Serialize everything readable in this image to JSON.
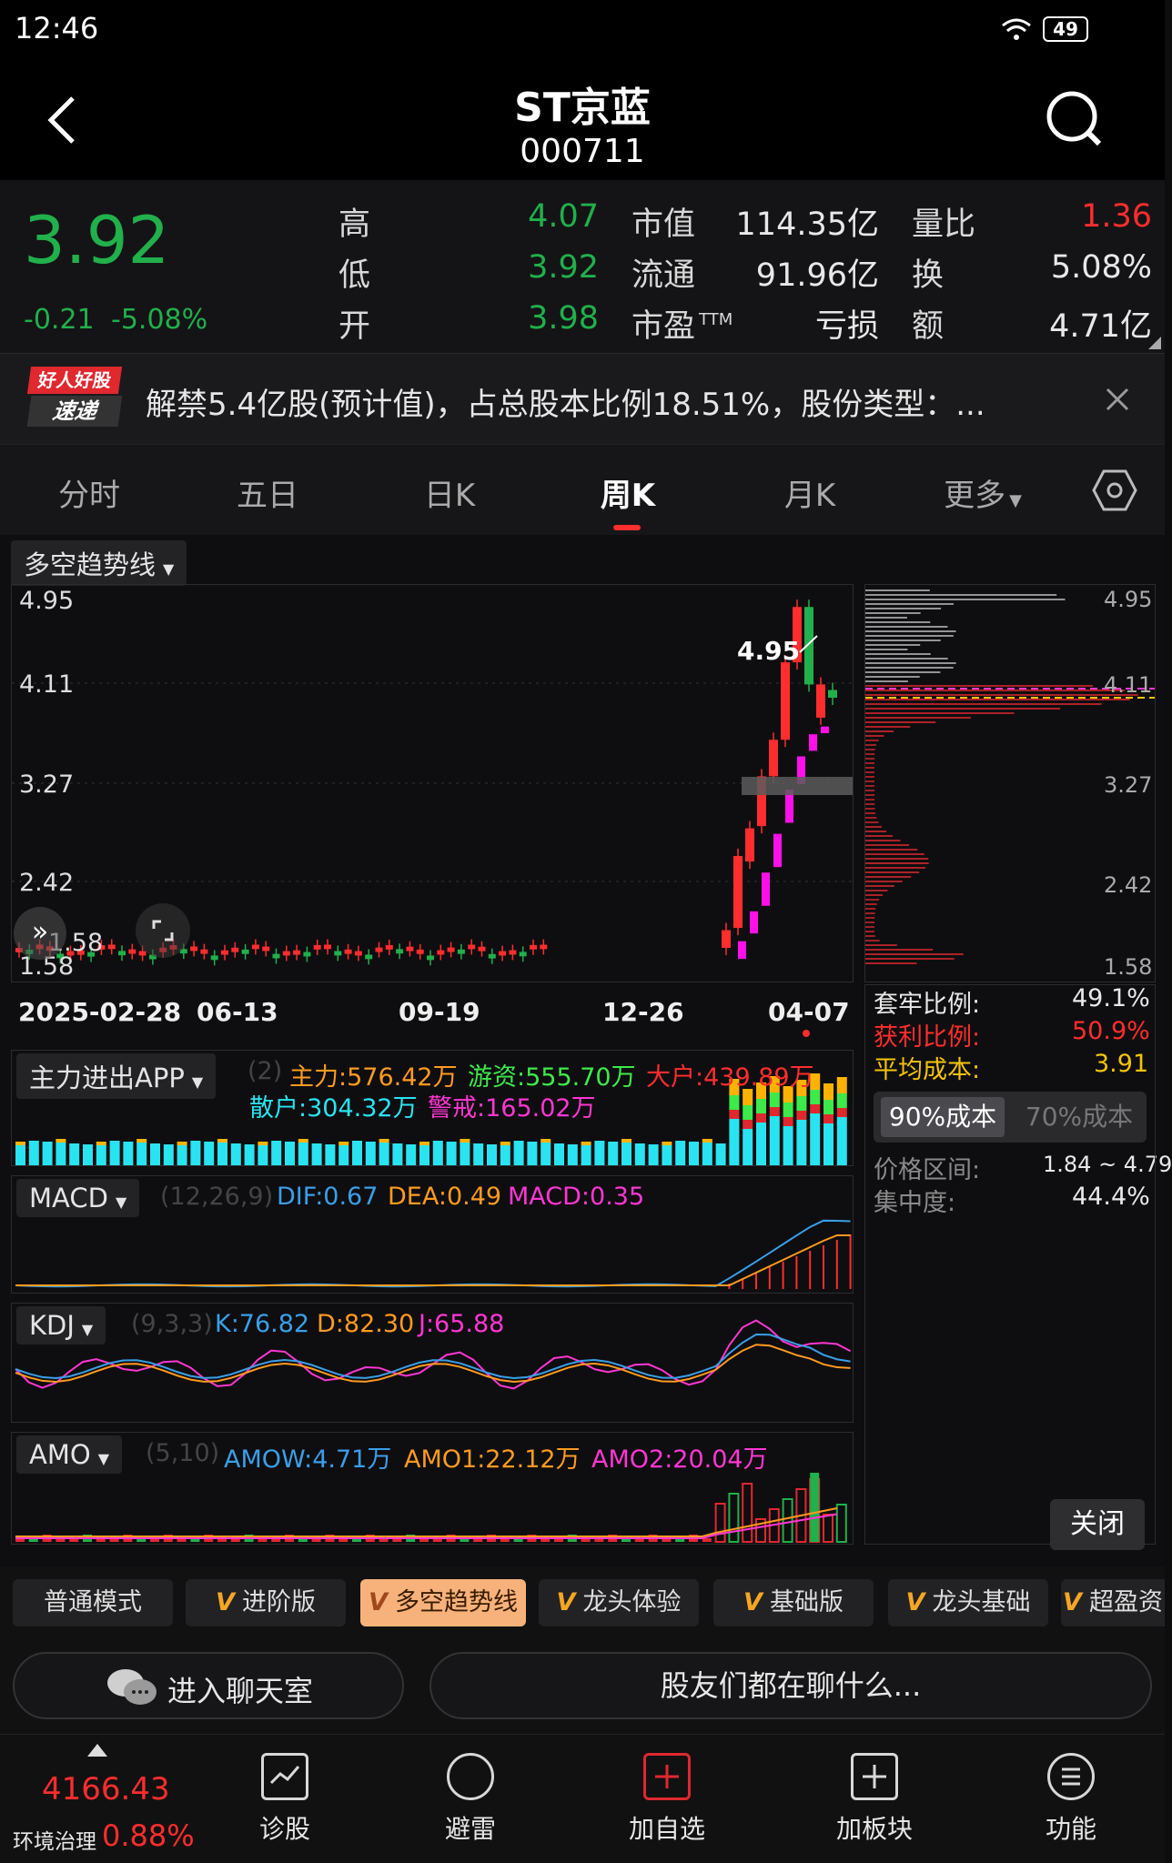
{
  "status": {
    "time": "12:46",
    "battery": "49"
  },
  "header": {
    "title": "ST京蓝",
    "code": "000711"
  },
  "quote": {
    "price": "3.92",
    "change": "-0.21",
    "change_pct": "-5.08%",
    "high_label": "高",
    "high": "4.07",
    "low_label": "低",
    "low": "3.92",
    "open_label": "开",
    "open": "3.98",
    "mktcap_label": "市值",
    "mktcap": "114.35亿",
    "float_label": "流通",
    "float": "91.96亿",
    "pe_label": "市盈",
    "pe_sup": "TTM",
    "pe": "亏损",
    "vr_label": "量比",
    "vr": "1.36",
    "turn_label": "换",
    "turn": "5.08%",
    "amt_label": "额",
    "amt": "4.71亿"
  },
  "notice": {
    "badge_top": "好人好股",
    "badge_bottom": "速递",
    "text": "解禁5.4亿股(预计值)，占总股本比例18.51%，股份类型：..."
  },
  "tabs": [
    {
      "label": "分时"
    },
    {
      "label": "五日"
    },
    {
      "label": "日K"
    },
    {
      "label": "周K"
    },
    {
      "label": "月K"
    },
    {
      "label": "更多"
    }
  ],
  "main_chart": {
    "indicator": "多空趋势线",
    "y_ticks": [
      "4.95",
      "4.11",
      "3.27",
      "2.42",
      "1.58"
    ],
    "low_label_overlay": "1.58",
    "peak_label": "4.95",
    "x_ticks": [
      "2025-02-28",
      "06-13",
      "09-19",
      "12-26",
      "04-07"
    ]
  },
  "chip": {
    "y_ticks": [
      "4.95",
      "4.11",
      "3.27",
      "2.42",
      "1.58"
    ],
    "trapped_label": "套牢比例:",
    "trapped": "49.1%",
    "profit_label": "获利比例:",
    "profit": "50.9%",
    "avg_label": "平均成本:",
    "avg": "3.91",
    "cost90": "90%成本",
    "cost70": "70%成本",
    "range_label": "价格区间:",
    "range": "1.84 ~ 4.79",
    "conc_label": "集中度:",
    "conc": "44.4%",
    "close": "关闭"
  },
  "panel_zl": {
    "name": "主力进出APP",
    "param": "(2)",
    "zl": "主力:576.42万",
    "yz": "游资:555.70万",
    "dh": "大户:439.89万",
    "sh": "散户:304.32万",
    "jj": "警戒:165.02万"
  },
  "panel_macd": {
    "name": "MACD",
    "param": "(12,26,9)",
    "dif": "DIF:0.67",
    "dea": "DEA:0.49",
    "macd": "MACD:0.35"
  },
  "panel_kdj": {
    "name": "KDJ",
    "param": "(9,3,3)",
    "k": "K:76.82",
    "d": "D:82.30",
    "j": "J:65.88"
  },
  "panel_amo": {
    "name": "AMO",
    "param": "(5,10)",
    "amow": "AMOW:4.71万",
    "amo1": "AMO1:22.12万",
    "amo2": "AMO2:20.04万"
  },
  "modes": [
    {
      "label": "普通模式"
    },
    {
      "label": "进阶版"
    },
    {
      "label": "多空趋势线"
    },
    {
      "label": "龙头体验"
    },
    {
      "label": "基础版"
    },
    {
      "label": "龙头基础"
    },
    {
      "label": "超盈资"
    }
  ],
  "chat": {
    "enter": "进入聊天室",
    "prompt": "股友们都在聊什么..."
  },
  "index": {
    "value": "4166.43",
    "name": "环境治理",
    "pct": "0.88%"
  },
  "bottom_nav": [
    {
      "label": "诊股"
    },
    {
      "label": "避雷"
    },
    {
      "label": "加自选"
    },
    {
      "label": "加板块"
    },
    {
      "label": "功能"
    }
  ],
  "colors": {
    "up": "#ff2d2d",
    "down": "#21b04b",
    "bg": "#0d0d0f"
  }
}
